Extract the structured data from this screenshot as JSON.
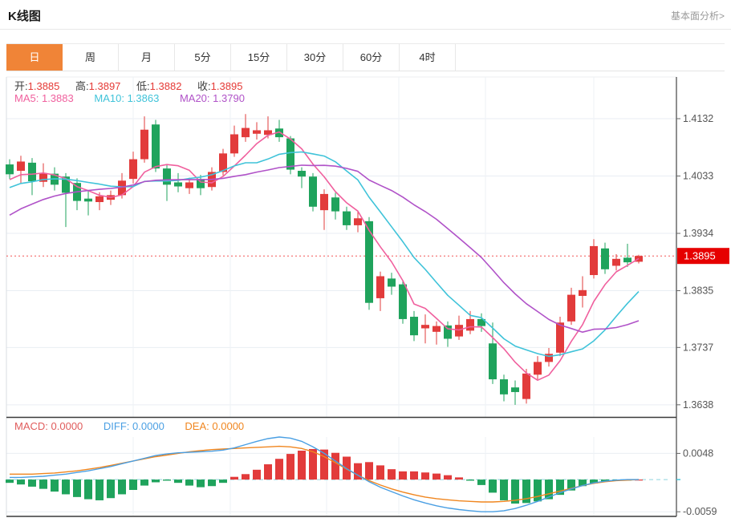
{
  "header": {
    "title": "K线图",
    "link_label": "基本面分析>"
  },
  "tabs": {
    "items": [
      {
        "label": "日",
        "active": true
      },
      {
        "label": "周",
        "active": false
      },
      {
        "label": "月",
        "active": false
      },
      {
        "label": "5分",
        "active": false
      },
      {
        "label": "15分",
        "active": false
      },
      {
        "label": "30分",
        "active": false
      },
      {
        "label": "60分",
        "active": false
      },
      {
        "label": "4时",
        "active": false
      }
    ]
  },
  "ohlc_legend": {
    "items": [
      {
        "label": "开:",
        "value": "1.3885"
      },
      {
        "label": "高:",
        "value": "1.3897"
      },
      {
        "label": "低:",
        "value": "1.3882"
      },
      {
        "label": "收:",
        "value": "1.3895"
      }
    ]
  },
  "ma_legend": {
    "items": [
      {
        "label": "MA5:",
        "value": "1.3883",
        "color": "#f0609e"
      },
      {
        "label": "MA10:",
        "value": "1.3863",
        "color": "#3fc3d9"
      },
      {
        "label": "MA20:",
        "value": "1.3790",
        "color": "#b052c8"
      }
    ]
  },
  "macd_legend": {
    "items": [
      {
        "label": "MACD:",
        "value": "0.0000",
        "color": "#e05c5c"
      },
      {
        "label": "DIFF:",
        "value": "0.0000",
        "color": "#4a9fe3"
      },
      {
        "label": "DEA:",
        "value": "0.0000",
        "color": "#f0861f"
      }
    ]
  },
  "price_axis": {
    "ticks": [
      "1.4132",
      "1.4033",
      "1.3934",
      "1.3835",
      "1.3737",
      "1.3638"
    ],
    "current": "1.3895"
  },
  "macd_axis": {
    "ticks": [
      "0.0048",
      "-0.0059"
    ]
  },
  "colors": {
    "up": "#e23b3b",
    "down": "#1fa35c",
    "ma5": "#f0609e",
    "ma10": "#3fc3d9",
    "ma20": "#b052c8",
    "diff": "#4a9fe3",
    "dea": "#f0861f",
    "current_line": "#f25555",
    "current_badge": "#e60000",
    "zero_dash": "#8fd3df",
    "grid": "#e9eef3",
    "axis": "#444444",
    "tab_active": "#f08437"
  },
  "chart_data": {
    "type": "candlestick",
    "title": "K线图",
    "panels": [
      "price",
      "macd"
    ],
    "legend_position": "top-left",
    "grid": true,
    "price_ylim": [
      1.3617,
      1.4204
    ],
    "price_ticks": [
      1.4132,
      1.4033,
      1.3934,
      1.3835,
      1.3737,
      1.3638
    ],
    "current_price": 1.3895,
    "last_ohlc": {
      "open": 1.3885,
      "high": 1.3897,
      "low": 1.3882,
      "close": 1.3895
    },
    "ma_periods": [
      5,
      10,
      20
    ],
    "ma_values": {
      "MA5": 1.3883,
      "MA10": 1.3863,
      "MA20": 1.379
    },
    "ma_seed_closes": [
      1.382,
      1.384,
      1.386,
      1.388,
      1.39,
      1.3915,
      1.393,
      1.3945,
      1.3958,
      1.397,
      1.398,
      1.3988,
      1.3994,
      1.4,
      1.4005,
      1.401,
      1.4015,
      1.402,
      1.4028,
      1.4035
    ],
    "candles": [
      [
        1.4053,
        1.4062,
        1.4028,
        1.4036
      ],
      [
        1.4042,
        1.4068,
        1.402,
        1.4058
      ],
      [
        1.4056,
        1.4064,
        1.4,
        1.4024
      ],
      [
        1.4023,
        1.4055,
        1.4014,
        1.4038
      ],
      [
        1.4037,
        1.4048,
        1.4008,
        1.4018
      ],
      [
        1.4032,
        1.4038,
        1.3945,
        1.4004
      ],
      [
        1.4021,
        1.4029,
        1.3974,
        1.399
      ],
      [
        1.3994,
        1.4008,
        1.3965,
        1.3989
      ],
      [
        1.3988,
        1.4005,
        1.3974,
        1.3998
      ],
      [
        1.3992,
        1.4008,
        1.3983,
        1.4
      ],
      [
        1.4,
        1.4038,
        1.3994,
        1.4025
      ],
      [
        1.4028,
        1.4075,
        1.402,
        1.4062
      ],
      [
        1.4062,
        1.4136,
        1.4056,
        1.4113
      ],
      [
        1.4122,
        1.413,
        1.404,
        1.4046
      ],
      [
        1.4046,
        1.4052,
        1.399,
        1.4018
      ],
      [
        1.4022,
        1.4038,
        1.4005,
        1.4015
      ],
      [
        1.4012,
        1.403,
        1.4002,
        1.4022
      ],
      [
        1.4028,
        1.4035,
        1.4,
        1.4012
      ],
      [
        1.4014,
        1.4048,
        1.4008,
        1.404
      ],
      [
        1.404,
        1.408,
        1.4034,
        1.4072
      ],
      [
        1.4072,
        1.412,
        1.4066,
        1.4105
      ],
      [
        1.41,
        1.414,
        1.4092,
        1.4116
      ],
      [
        1.4106,
        1.4126,
        1.4096,
        1.4112
      ],
      [
        1.4104,
        1.4136,
        1.4098,
        1.4112
      ],
      [
        1.4115,
        1.413,
        1.4092,
        1.41
      ],
      [
        1.4098,
        1.4102,
        1.4036,
        1.4044
      ],
      [
        1.4042,
        1.4048,
        1.4012,
        1.4032
      ],
      [
        1.4032,
        1.4038,
        1.3972,
        1.398
      ],
      [
        1.3974,
        1.401,
        1.394,
        1.4002
      ],
      [
        1.3996,
        1.4004,
        1.3958,
        1.3972
      ],
      [
        1.3972,
        1.398,
        1.394,
        1.3948
      ],
      [
        1.3948,
        1.3972,
        1.3936,
        1.396
      ],
      [
        1.3955,
        1.3962,
        1.3802,
        1.3814
      ],
      [
        1.3822,
        1.3868,
        1.38,
        1.386
      ],
      [
        1.3856,
        1.3866,
        1.3828,
        1.3842
      ],
      [
        1.3846,
        1.3852,
        1.3778,
        1.3786
      ],
      [
        1.379,
        1.38,
        1.3748,
        1.3758
      ],
      [
        1.377,
        1.3794,
        1.3744,
        1.3776
      ],
      [
        1.3764,
        1.3782,
        1.3742,
        1.3774
      ],
      [
        1.3775,
        1.3782,
        1.3738,
        1.3752
      ],
      [
        1.3756,
        1.3792,
        1.375,
        1.3776
      ],
      [
        1.3766,
        1.38,
        1.376,
        1.3786
      ],
      [
        1.3786,
        1.3796,
        1.3764,
        1.3774
      ],
      [
        1.3744,
        1.378,
        1.3674,
        1.3682
      ],
      [
        1.3682,
        1.369,
        1.3644,
        1.3656
      ],
      [
        1.3668,
        1.368,
        1.3638,
        1.366
      ],
      [
        1.3648,
        1.37,
        1.364,
        1.3692
      ],
      [
        1.369,
        1.3722,
        1.3682,
        1.3712
      ],
      [
        1.3712,
        1.3736,
        1.3704,
        1.3726
      ],
      [
        1.3728,
        1.379,
        1.3722,
        1.378
      ],
      [
        1.3782,
        1.384,
        1.3776,
        1.3828
      ],
      [
        1.3826,
        1.386,
        1.3806,
        1.3836
      ],
      [
        1.3862,
        1.3924,
        1.3856,
        1.3912
      ],
      [
        1.3908,
        1.3918,
        1.3864,
        1.3872
      ],
      [
        1.3878,
        1.3898,
        1.387,
        1.389
      ],
      [
        1.3892,
        1.3916,
        1.3876,
        1.3884
      ],
      [
        1.3885,
        1.3897,
        1.3882,
        1.3895
      ]
    ],
    "macd": {
      "ylim": [
        -0.0066,
        0.0078
      ],
      "ticks": [
        0.0048,
        -0.0059
      ],
      "values": {
        "MACD": 0.0,
        "DIFF": 0.0,
        "DEA": 0.0
      },
      "hist": [
        -0.0006,
        -0.0009,
        -0.0013,
        -0.0017,
        -0.0022,
        -0.0027,
        -0.0032,
        -0.0036,
        -0.0038,
        -0.0034,
        -0.0027,
        -0.0019,
        -0.0011,
        -0.0005,
        -0.0002,
        -0.0006,
        -0.0011,
        -0.0014,
        -0.0012,
        -0.0006,
        0.0005,
        0.001,
        0.0018,
        0.0028,
        0.0038,
        0.0047,
        0.0053,
        0.0056,
        0.0055,
        0.0049,
        0.0042,
        0.003,
        0.0032,
        0.0026,
        0.0019,
        0.0015,
        0.0015,
        0.0013,
        0.0011,
        0.0008,
        0.0004,
        -0.0002,
        -0.001,
        -0.0024,
        -0.0038,
        -0.0044,
        -0.0043,
        -0.004,
        -0.0036,
        -0.0028,
        -0.002,
        -0.0012,
        -0.0007,
        -0.0004,
        -0.0002,
        -0.0001,
        0.0
      ],
      "diff": [
        0.0004,
        0.0004,
        0.0005,
        0.0006,
        0.0008,
        0.001,
        0.0013,
        0.0016,
        0.002,
        0.0024,
        0.0029,
        0.0034,
        0.0039,
        0.0044,
        0.0047,
        0.0049,
        0.005,
        0.0051,
        0.0052,
        0.0054,
        0.0058,
        0.0064,
        0.007,
        0.0075,
        0.0078,
        0.0076,
        0.007,
        0.006,
        0.0048,
        0.0034,
        0.002,
        0.0008,
        -0.0004,
        -0.0014,
        -0.0022,
        -0.003,
        -0.0037,
        -0.0043,
        -0.0048,
        -0.0052,
        -0.0055,
        -0.0057,
        -0.0059,
        -0.0059,
        -0.0057,
        -0.0053,
        -0.0047,
        -0.004,
        -0.0032,
        -0.0024,
        -0.0017,
        -0.0011,
        -0.0006,
        -0.0003,
        -0.0001,
        0.0,
        0.0
      ],
      "dea": [
        0.001,
        0.001,
        0.001,
        0.0011,
        0.0012,
        0.0014,
        0.0016,
        0.0019,
        0.0022,
        0.0026,
        0.003,
        0.0034,
        0.0038,
        0.0042,
        0.0045,
        0.0048,
        0.0051,
        0.0053,
        0.0055,
        0.0056,
        0.0057,
        0.0058,
        0.0059,
        0.006,
        0.0061,
        0.006,
        0.0057,
        0.0051,
        0.0042,
        0.0031,
        0.0019,
        0.0008,
        -0.0002,
        -0.001,
        -0.0017,
        -0.0023,
        -0.0028,
        -0.0032,
        -0.0035,
        -0.0037,
        -0.0039,
        -0.004,
        -0.0041,
        -0.0041,
        -0.004,
        -0.0038,
        -0.0035,
        -0.0031,
        -0.0026,
        -0.0021,
        -0.0016,
        -0.0011,
        -0.0007,
        -0.0004,
        -0.0002,
        -0.0001,
        0.0
      ]
    }
  }
}
